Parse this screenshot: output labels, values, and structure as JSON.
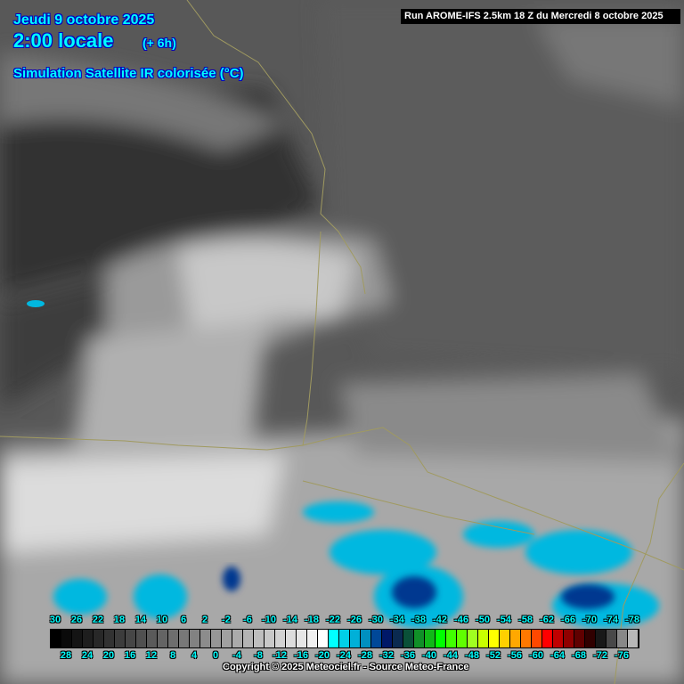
{
  "header": {
    "date": "Jeudi 9 octobre 2025",
    "time": "2:00 locale",
    "lead": "(+ 6h)",
    "product": "Simulation Satellite IR colorisée (°C)",
    "run": "Run AROME-IFS 2.5km 18 Z du Mercredi 8 octobre 2025"
  },
  "legend": {
    "unit": "°C",
    "top_labels": [
      "30",
      "26",
      "22",
      "18",
      "14",
      "10",
      "6",
      "2",
      "-2",
      "-6",
      "-10",
      "-14",
      "-18",
      "-22",
      "-26",
      "-30",
      "-34",
      "-38",
      "-42",
      "-46",
      "-50",
      "-54",
      "-58",
      "-62",
      "-66",
      "-70",
      "-74",
      "-78"
    ],
    "bottom_labels": [
      "28",
      "24",
      "20",
      "16",
      "12",
      "8",
      "4",
      "0",
      "-4",
      "-8",
      "-12",
      "-16",
      "-20",
      "-24",
      "-28",
      "-32",
      "-36",
      "-40",
      "-44",
      "-48",
      "-52",
      "-56",
      "-60",
      "-64",
      "-68",
      "-72",
      "-76"
    ],
    "colors": [
      "#000000",
      "#0a0a0a",
      "#141414",
      "#1e1e1e",
      "#282828",
      "#323232",
      "#3c3c3c",
      "#464646",
      "#505050",
      "#5a5a5a",
      "#646464",
      "#6e6e6e",
      "#787878",
      "#828282",
      "#8c8c8c",
      "#969696",
      "#a0a0a0",
      "#aaaaaa",
      "#b4b4b4",
      "#bebebe",
      "#c8c8c8",
      "#d2d2d2",
      "#dcdcdc",
      "#e6e6e6",
      "#f0f0f0",
      "#ffffff",
      "#00ffff",
      "#00d0e8",
      "#00b0d8",
      "#0090c0",
      "#004898",
      "#001868",
      "#0a2a50",
      "#0a5038",
      "#109028",
      "#10b818",
      "#00ff00",
      "#40ff00",
      "#60ff00",
      "#a0ff20",
      "#c8ff00",
      "#ffff00",
      "#ffd000",
      "#ffa800",
      "#ff7800",
      "#ff4800",
      "#ff0000",
      "#c00000",
      "#900000",
      "#600000",
      "#300000",
      "#181818",
      "#484848",
      "#888888",
      "#b8b8b8"
    ]
  },
  "footer": {
    "copyright": "Copyright © 2025 Meteociel.fr - Source Meteo-France"
  }
}
